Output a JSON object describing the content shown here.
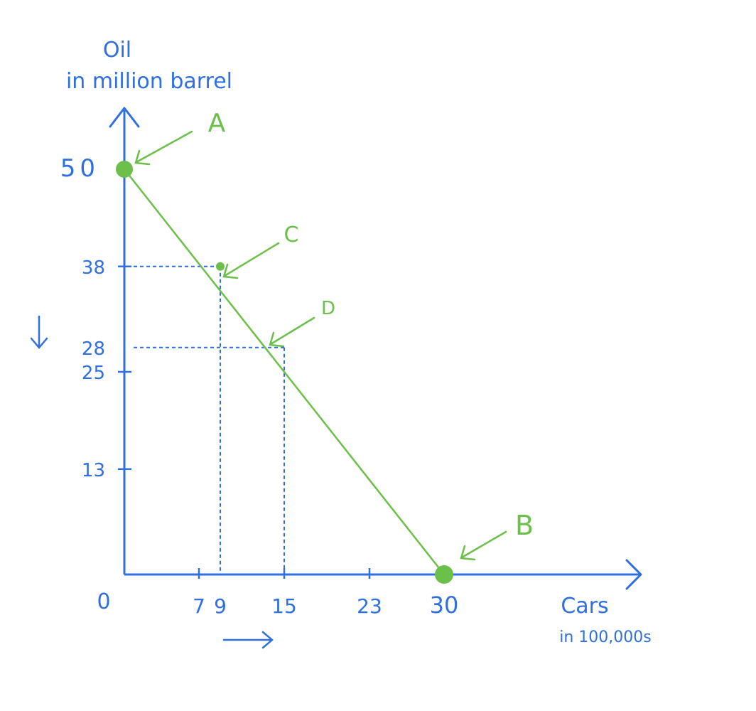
{
  "chart_data": {
    "type": "line",
    "ylabel_line1": "Oil",
    "ylabel_line2": "in million barrel",
    "xlabel_line1": "Cars",
    "xlabel_line2": "in 100,000s",
    "origin_label": "0",
    "xlim": [
      0,
      30
    ],
    "ylim": [
      0,
      50
    ],
    "x_ticks": [
      7,
      9,
      15,
      23,
      30
    ],
    "y_ticks": [
      13,
      25,
      28,
      38,
      50
    ],
    "x_tick_marks": [
      7,
      15,
      23
    ],
    "y_tick_marks": [
      13,
      25,
      38
    ],
    "series": [
      {
        "x": [
          0,
          30
        ],
        "y": [
          50,
          0
        ]
      }
    ],
    "points": [
      {
        "label": "A",
        "x": 0,
        "y": 50
      },
      {
        "label": "C",
        "x": 9,
        "y": 38
      },
      {
        "label": "D",
        "x": 15,
        "y": 28
      },
      {
        "label": "B",
        "x": 30,
        "y": 0
      }
    ],
    "guides": [
      {
        "x": 9,
        "y": 38
      },
      {
        "x": 15,
        "y": 28
      }
    ],
    "colors": {
      "axes": "#2f6fe0",
      "curve": "#6cbf4a"
    }
  }
}
